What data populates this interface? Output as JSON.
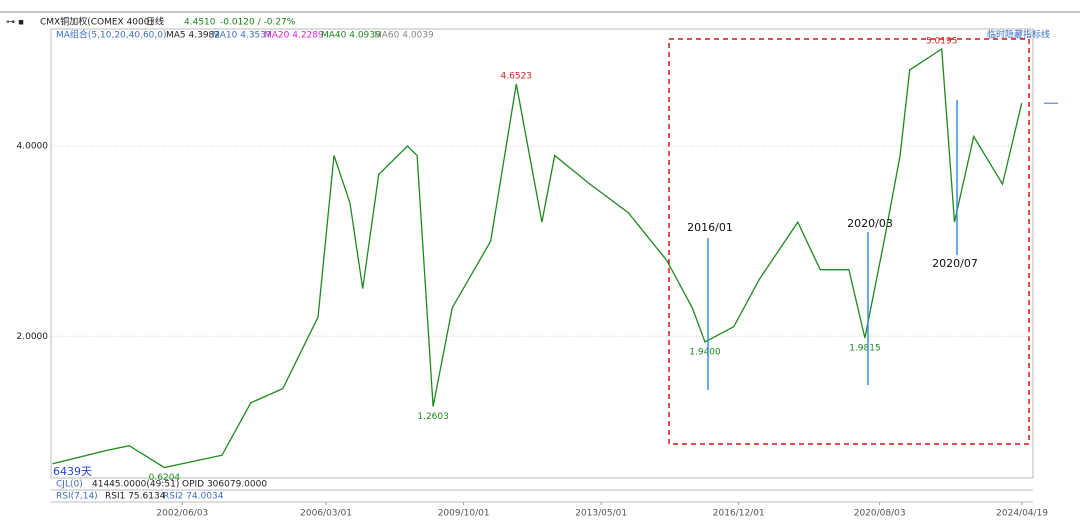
{
  "toolbar": {
    "symbol": "CMX铜加权(COMEX 4000)",
    "period": "日线",
    "price": "4.4510",
    "change": "-0.0120 / -0.27%",
    "ma_group": "MA组合(5,10,20,40,60,0)",
    "ma5": "MA5 4.3982",
    "ma10": "MA10 4.3537",
    "ma20": "MA20 4.2289",
    "ma40": "MA40 4.0939",
    "ma60": "MA60 4.0039",
    "hide_button": "临时隐藏指标线",
    "days": "6439天",
    "cjl": "CJL(0)",
    "cjl_value": "41445.0000(49:51)",
    "opid": "OPID 306079.0000",
    "rsi": "RSI(7,14)",
    "rsi1": "RSI1 75.6134",
    "rsi2": "RSI2 74.0034"
  },
  "chart_data": {
    "type": "line",
    "series": [
      {
        "name": "CMX铜加权",
        "color": "#1e8a1e",
        "x": [
          "1999/01/15",
          "2000/06/15",
          "2001/01/15",
          "2001/12/15",
          "2003/06/15",
          "2004/03/15",
          "2005/01/15",
          "2005/12/15",
          "2006/05/15",
          "2006/10/15",
          "2007/02/15",
          "2007/07/15",
          "2008/04/15",
          "2008/07/15",
          "2008/12/15",
          "2009/06/15",
          "2010/06/15",
          "2011/02/15",
          "2011/10/15",
          "2012/02/15",
          "2013/01/15",
          "2014/01/15",
          "2015/01/15",
          "2015/09/15",
          "2016/01/15",
          "2016/10/15",
          "2017/06/15",
          "2018/06/15",
          "2019/01/15",
          "2019/10/15",
          "2020/03/15",
          "2020/09/15",
          "2021/02/15",
          "2021/05/15",
          "2022/03/15",
          "2022/07/15",
          "2023/01/15",
          "2023/10/15",
          "2024/04/15"
        ],
        "values": [
          0.66,
          0.8,
          0.85,
          0.6204,
          0.75,
          1.3,
          1.45,
          2.2,
          3.9,
          3.4,
          2.5,
          3.7,
          4.0,
          3.9,
          1.2603,
          2.3,
          3.0,
          4.6523,
          3.2,
          3.9,
          3.6,
          3.3,
          2.8,
          2.3,
          1.94,
          2.1,
          2.6,
          3.2,
          2.7,
          2.7,
          1.9815,
          3.0,
          3.9,
          4.8,
          5.0195,
          3.2,
          4.1,
          3.6,
          4.45
        ]
      }
    ],
    "extremes": [
      {
        "value": 0.6204,
        "label": "0.6204",
        "kind": "low"
      },
      {
        "value": 1.2603,
        "label": "1.2603",
        "kind": "low"
      },
      {
        "value": 4.6523,
        "label": "4.6523",
        "kind": "high"
      },
      {
        "value": 1.94,
        "label": "1.9400",
        "kind": "low"
      },
      {
        "value": 1.9815,
        "label": "1.9815",
        "kind": "low"
      },
      {
        "value": 5.0195,
        "label": "5.0195",
        "kind": "high"
      }
    ],
    "annotations": [
      "2016/01",
      "2020/03",
      "2020/07"
    ],
    "xlim": [
      "1999/01/01",
      "2024/08/01"
    ],
    "xticks": [
      "2002/06/03",
      "2006/03/01",
      "2009/10/01",
      "2013/05/01",
      "2016/12/01",
      "2020/08/03",
      "2024/04/19"
    ],
    "ylim": [
      0.51,
      5.23
    ],
    "yticks": [
      {
        "value": 2,
        "label": "2.0000"
      },
      {
        "value": 4,
        "label": "4.0000"
      }
    ],
    "grid": true
  }
}
